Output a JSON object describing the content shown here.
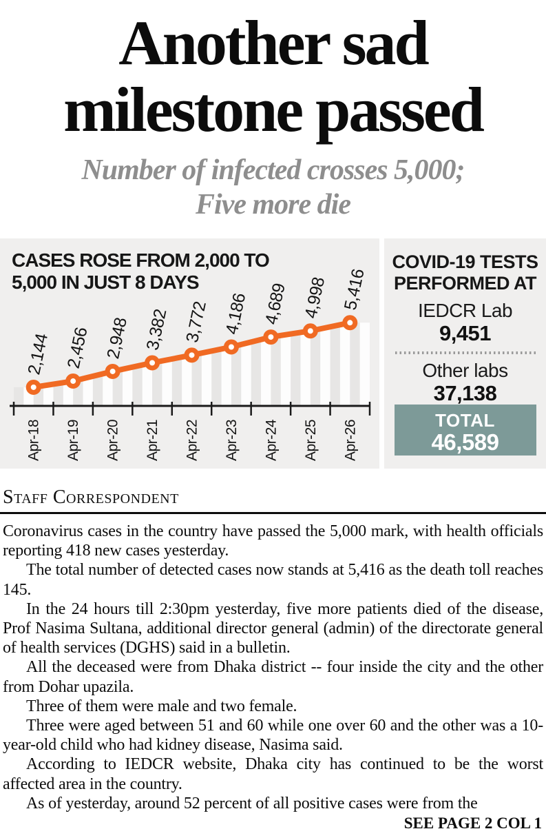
{
  "article": {
    "headline_lines": [
      "Another sad",
      "milestone passed"
    ],
    "subhead_lines": [
      "Number of infected crosses 5,000;",
      "Five more die"
    ],
    "byline": "Staff Correspondent",
    "paragraphs": [
      "Coronavirus cases in the country have passed the 5,000 mark, with health officials reporting 418 new cases yesterday.",
      "The total number of detected cases now stands at 5,416 as the death toll reaches 145.",
      "In the 24 hours till 2:30pm yesterday, five more patients died of the disease, Prof Nasima Sultana, additional director general (admin) of the directorate general of health services (DGHS) said in a bulletin.",
      "All the deceased were from Dhaka district -- four inside the city and the other from Dohar upazila.",
      "Three of them were male and two female.",
      "Three were aged between 51 and 60 while one over 60 and the other was a 10-year-old child who had kidney disease, Nasima said.",
      "According to IEDCR website, Dhaka city has continued to be the worst affected area in the country.",
      "As of yesterday, around 52 percent of all positive cases were from the"
    ],
    "continuation": "SEE PAGE 2 COL 1"
  },
  "chart_data": {
    "type": "line",
    "title": "CASES ROSE FROM 2,000 TO 5,000 IN JUST 8 DAYS",
    "title_lines": [
      "CASES ROSE FROM 2,000 TO",
      "5,000 IN JUST 8 DAYS"
    ],
    "categories": [
      "Apr-18",
      "Apr-19",
      "Apr-20",
      "Apr-21",
      "Apr-22",
      "Apr-23",
      "Apr-24",
      "Apr-25",
      "Apr-26"
    ],
    "values": [
      2144,
      2456,
      2948,
      3382,
      3772,
      4186,
      4689,
      4998,
      5416
    ],
    "value_labels": [
      "2,144",
      "2,456",
      "2,948",
      "3,382",
      "3,772",
      "4,186",
      "4,689",
      "4,998",
      "5,416"
    ],
    "xlabel": "",
    "ylabel": "",
    "ylim": [
      1200,
      5600
    ],
    "grid": false,
    "legend": "none",
    "line_color": "#f06a23",
    "marker": "open-circle",
    "marker_fill": "#ffffff",
    "stripe_light": "#fdfdfd",
    "stripe_dark": "#e7e6e5",
    "axis_color": "#1a1a1a",
    "label_color": "#151515"
  },
  "tests_panel": {
    "title_lines": [
      "COVID-19 TESTS",
      "PERFORMED AT"
    ],
    "items": [
      {
        "label": "IEDCR Lab",
        "value": "9,451"
      },
      {
        "label": "Other labs",
        "value": "37,138"
      }
    ],
    "total_label": "TOTAL",
    "total_value": "46,589",
    "total_bg": "#7d9a98",
    "total_text_color": "#ffffff"
  },
  "colors": {
    "panel_bg": "#f0efee",
    "subhead_gray": "#8e8e8e",
    "text_black": "#0d0d0d"
  }
}
